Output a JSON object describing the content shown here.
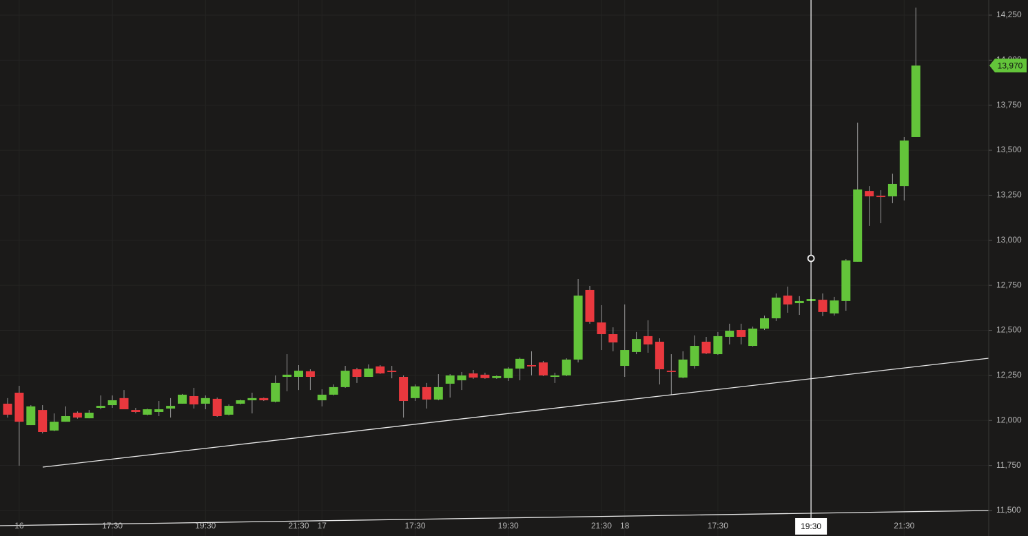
{
  "chart_data": {
    "type": "candlestick",
    "categories": [
      null,
      "16",
      null,
      null,
      null,
      null,
      null,
      null,
      null,
      "17:30",
      null,
      null,
      null,
      null,
      null,
      null,
      null,
      "19:30",
      null,
      null,
      null,
      null,
      null,
      null,
      null,
      "21:30",
      null,
      "17",
      null,
      null,
      null,
      null,
      null,
      null,
      null,
      "17:30",
      null,
      null,
      null,
      null,
      null,
      null,
      null,
      "19:30",
      null,
      null,
      null,
      null,
      null,
      null,
      null,
      "21:30",
      null,
      "18",
      null,
      null,
      null,
      null,
      null,
      null,
      null,
      "17:30",
      null,
      null,
      null,
      null,
      null,
      null,
      null,
      "19:30",
      null,
      null,
      null,
      null,
      null,
      null,
      null,
      "21:30",
      null
    ],
    "open": [
      12093,
      12154,
      11974,
      12058,
      11944,
      11993,
      12043,
      12012,
      12070,
      12085,
      12124,
      12058,
      12032,
      12047,
      12066,
      12093,
      12135,
      12093,
      12120,
      12032,
      12093,
      12112,
      12124,
      12104,
      12242,
      12242,
      12273,
      12112,
      12143,
      12185,
      12284,
      12242,
      12300,
      12276,
      12242,
      12124,
      12185,
      12116,
      12204,
      12223,
      12261,
      12254,
      12235,
      12235,
      12288,
      12307,
      12322,
      12242,
      12250,
      12338,
      12724,
      12544,
      12479,
      12303,
      12380,
      12468,
      12437,
      12276,
      12238,
      12303,
      12437,
      12368,
      12464,
      12502,
      12414,
      12510,
      12567,
      12693,
      12651,
      12663,
      12670,
      12594,
      12663,
      12881,
      13274,
      13247,
      13244,
      13301,
      13573
    ],
    "high": [
      12124,
      12192,
      12085,
      12085,
      12039,
      12078,
      12050,
      12058,
      12139,
      12139,
      12169,
      12070,
      12066,
      12108,
      12124,
      12147,
      12181,
      12139,
      12127,
      12089,
      12116,
      12154,
      12127,
      12250,
      12368,
      12307,
      12284,
      12173,
      12200,
      12303,
      12292,
      12311,
      12307,
      12303,
      12250,
      12200,
      12208,
      12257,
      12257,
      12269,
      12280,
      12265,
      12250,
      12296,
      12349,
      12384,
      12330,
      12265,
      12345,
      12785,
      12747,
      12640,
      12517,
      12644,
      12491,
      12556,
      12456,
      12368,
      12384,
      12472,
      12464,
      12491,
      12537,
      12537,
      12521,
      12582,
      12705,
      12743,
      12690,
      12682,
      12705,
      12686,
      12896,
      13653,
      13301,
      13278,
      13370,
      13573,
      14292
    ],
    "low": [
      12016,
      11749,
      11974,
      11928,
      11940,
      11993,
      12010,
      12012,
      12062,
      12070,
      12062,
      12040,
      12028,
      12024,
      12016,
      12093,
      12066,
      12062,
      12020,
      12028,
      12089,
      12039,
      12108,
      12100,
      12162,
      12169,
      12169,
      12078,
      12139,
      12181,
      12208,
      12242,
      12258,
      12234,
      12016,
      12108,
      12066,
      12112,
      12127,
      12169,
      12231,
      12231,
      12231,
      12219,
      12223,
      12250,
      12246,
      12208,
      12246,
      12322,
      12537,
      12391,
      12384,
      12242,
      12368,
      12376,
      12200,
      12143,
      12234,
      12288,
      12368,
      12364,
      12422,
      12422,
      12410,
      12502,
      12552,
      12598,
      12586,
      12659,
      12579,
      12582,
      12609,
      12881,
      13080,
      13095,
      13206,
      13221,
      13573
    ],
    "close": [
      12032,
      11993,
      12078,
      11936,
      11993,
      12024,
      12016,
      12043,
      12081,
      12112,
      12062,
      12047,
      12062,
      12062,
      12081,
      12143,
      12089,
      12124,
      12024,
      12081,
      12112,
      12124,
      12112,
      12208,
      12254,
      12276,
      12242,
      12143,
      12185,
      12276,
      12242,
      12288,
      12261,
      12269,
      12108,
      12189,
      12116,
      12185,
      12250,
      12250,
      12238,
      12235,
      12246,
      12288,
      12342,
      12300,
      12250,
      12250,
      12338,
      12693,
      12548,
      12479,
      12433,
      12391,
      12452,
      12422,
      12284,
      12269,
      12338,
      12414,
      12372,
      12468,
      12498,
      12464,
      12510,
      12567,
      12682,
      12644,
      12663,
      12674,
      12602,
      12666,
      12888,
      13282,
      13244,
      13240,
      13313,
      13554,
      13970
    ],
    "up_color": "#63c43a",
    "down_color": "#e9383e",
    "ylim": [
      11358.5,
      14334
    ],
    "yticks": [
      {
        "value": 11500,
        "label": "11,500"
      },
      {
        "value": 11750,
        "label": "11,750"
      },
      {
        "value": 12000,
        "label": "12,000"
      },
      {
        "value": 12250,
        "label": "12,250"
      },
      {
        "value": 12500,
        "label": "12,500"
      },
      {
        "value": 12750,
        "label": "12,750"
      },
      {
        "value": 13000,
        "label": "13,000"
      },
      {
        "value": 13250,
        "label": "13,250"
      },
      {
        "value": 13500,
        "label": "13,500"
      },
      {
        "value": 13750,
        "label": "13,750"
      },
      {
        "value": 14000,
        "label": "14,000"
      },
      {
        "value": 14250,
        "label": "14,250"
      }
    ],
    "last_price": {
      "value": 13970,
      "label": "13,970"
    },
    "crosshair_category": 69,
    "grid": true
  }
}
